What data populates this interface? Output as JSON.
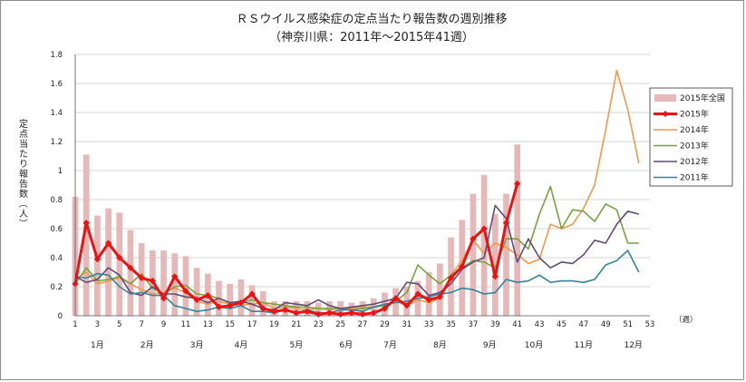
{
  "chart_data": {
    "type": "line",
    "title": "ＲＳウイルス感染症の定点当たり報告数の週別推移",
    "subtitle": "（神奈川県：2011年～2015年41週）",
    "ylabel": "定点当たり報告数（人）",
    "xlabel": "（週）",
    "ylim": [
      0,
      1.8
    ],
    "yticks": [
      "0",
      "0.2",
      "0.4",
      "0.6",
      "0.8",
      "1",
      "1.2",
      "1.4",
      "1.6",
      "1.8"
    ],
    "xlim": [
      1,
      53
    ],
    "xticks": [
      "1",
      "3",
      "5",
      "7",
      "9",
      "11",
      "13",
      "15",
      "17",
      "19",
      "21",
      "23",
      "25",
      "27",
      "29",
      "31",
      "33",
      "35",
      "37",
      "39",
      "41",
      "43",
      "45",
      "47",
      "49",
      "51",
      "53"
    ],
    "months": [
      {
        "label": "1月",
        "week": 3
      },
      {
        "label": "2月",
        "week": 7.5
      },
      {
        "label": "3月",
        "week": 12
      },
      {
        "label": "4月",
        "week": 16
      },
      {
        "label": "5月",
        "week": 21
      },
      {
        "label": "6月",
        "week": 25.5
      },
      {
        "label": "7月",
        "week": 29.5
      },
      {
        "label": "8月",
        "week": 34
      },
      {
        "label": "9月",
        "week": 38.5
      },
      {
        "label": "10月",
        "week": 42.5
      },
      {
        "label": "11月",
        "week": 47
      },
      {
        "label": "12月",
        "week": 51.5
      }
    ],
    "legend_position": "right",
    "bar_series": {
      "name": "2015年全国",
      "color": "#e6b9b8",
      "values": [
        0.82,
        1.11,
        0.69,
        0.74,
        0.71,
        0.59,
        0.5,
        0.45,
        0.45,
        0.43,
        0.41,
        0.33,
        0.29,
        0.24,
        0.22,
        0.25,
        0.21,
        0.17,
        0.1,
        0.1,
        0.1,
        0.1,
        0.09,
        0.1,
        0.1,
        0.09,
        0.1,
        0.12,
        0.16,
        0.19,
        0.2,
        0.24,
        0.3,
        0.36,
        0.54,
        0.66,
        0.84,
        0.97,
        0.7,
        0.84,
        1.18
      ]
    },
    "series": [
      {
        "name": "2015年",
        "color": "#ee1111",
        "marker": "diamond",
        "width": 3,
        "values": [
          0.22,
          0.64,
          0.39,
          0.5,
          0.4,
          0.33,
          0.26,
          0.24,
          0.12,
          0.27,
          0.17,
          0.11,
          0.14,
          0.06,
          0.07,
          0.09,
          0.15,
          0.05,
          0.03,
          0.04,
          0.02,
          0.03,
          0.01,
          0.02,
          0.01,
          0.02,
          0.01,
          0.02,
          0.05,
          0.12,
          0.07,
          0.15,
          0.11,
          0.13,
          0.26,
          0.34,
          0.53,
          0.6,
          0.27,
          0.64,
          0.91
        ]
      },
      {
        "name": "2014年",
        "color": "#f79646",
        "width": 1.6,
        "values": [
          0.25,
          0.3,
          0.22,
          0.24,
          0.26,
          0.22,
          0.18,
          0.15,
          0.16,
          0.19,
          0.16,
          0.1,
          0.08,
          0.1,
          0.08,
          0.07,
          0.08,
          0.09,
          0.05,
          0.06,
          0.05,
          0.04,
          0.05,
          0.04,
          0.05,
          0.05,
          0.06,
          0.06,
          0.07,
          0.1,
          0.07,
          0.11,
          0.09,
          0.12,
          0.28,
          0.38,
          0.52,
          0.43,
          0.5,
          0.47,
          0.42,
          0.36,
          0.39,
          0.63,
          0.6,
          0.63,
          0.74,
          0.9,
          1.28,
          1.69,
          1.42,
          1.05
        ]
      },
      {
        "name": "2013年",
        "color": "#77a33c",
        "width": 1.6,
        "values": [
          0.22,
          0.33,
          0.24,
          0.25,
          0.27,
          0.22,
          0.29,
          0.19,
          0.15,
          0.2,
          0.21,
          0.15,
          0.14,
          0.12,
          0.09,
          0.09,
          0.11,
          0.09,
          0.08,
          0.07,
          0.06,
          0.06,
          0.05,
          0.05,
          0.05,
          0.04,
          0.05,
          0.06,
          0.07,
          0.1,
          0.16,
          0.35,
          0.28,
          0.22,
          0.28,
          0.33,
          0.38,
          0.37,
          0.33,
          0.53,
          0.53,
          0.46,
          0.7,
          0.89,
          0.6,
          0.73,
          0.72,
          0.65,
          0.77,
          0.73,
          0.5,
          0.5
        ]
      },
      {
        "name": "2012年",
        "color": "#604a7b",
        "width": 1.6,
        "values": [
          0.27,
          0.23,
          0.25,
          0.33,
          0.28,
          0.16,
          0.14,
          0.2,
          0.15,
          0.15,
          0.13,
          0.12,
          0.09,
          0.12,
          0.09,
          0.1,
          0.08,
          0.05,
          0.04,
          0.09,
          0.08,
          0.07,
          0.11,
          0.07,
          0.05,
          0.06,
          0.07,
          0.08,
          0.1,
          0.12,
          0.23,
          0.22,
          0.14,
          0.16,
          0.22,
          0.32,
          0.37,
          0.4,
          0.76,
          0.67,
          0.37,
          0.53,
          0.4,
          0.33,
          0.37,
          0.36,
          0.42,
          0.52,
          0.5,
          0.63,
          0.72,
          0.7
        ]
      },
      {
        "name": "2011年",
        "color": "#31859c",
        "width": 1.6,
        "values": [
          0.27,
          0.26,
          0.29,
          0.28,
          0.2,
          0.15,
          0.16,
          0.14,
          0.14,
          0.07,
          0.05,
          0.03,
          0.04,
          0.06,
          0.05,
          0.07,
          0.03,
          0.03,
          0.02,
          0.04,
          0.02,
          0.04,
          0.02,
          0.02,
          0.04,
          0.04,
          0.03,
          0.06,
          0.08,
          0.09,
          0.1,
          0.12,
          0.13,
          0.15,
          0.16,
          0.19,
          0.18,
          0.15,
          0.16,
          0.25,
          0.23,
          0.24,
          0.28,
          0.23,
          0.24,
          0.24,
          0.23,
          0.25,
          0.35,
          0.38,
          0.45,
          0.3
        ]
      }
    ]
  }
}
